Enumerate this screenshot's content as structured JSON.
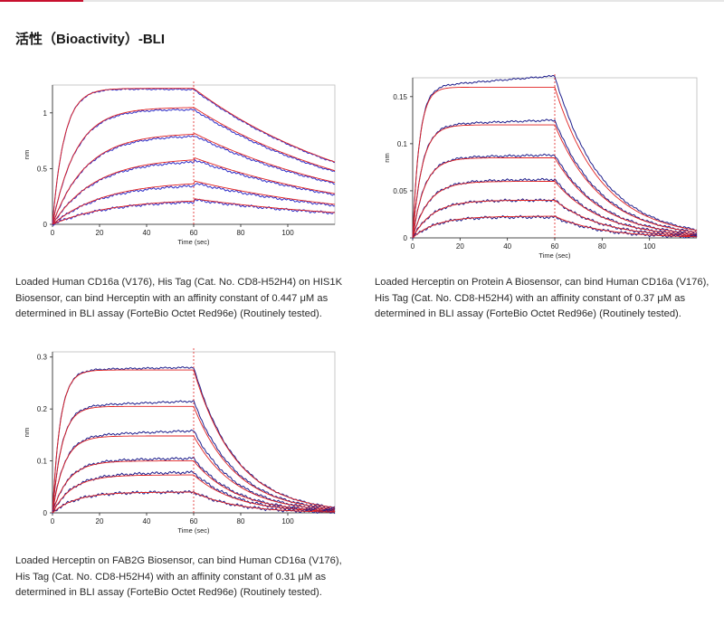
{
  "section_title": "活性（Bioactivity）-BLI",
  "chart_data": [
    {
      "type": "line",
      "xlabel": "Time (sec)",
      "ylabel": "nm",
      "xlim": [
        0,
        120
      ],
      "ylim": [
        0,
        1.25
      ],
      "x_ticks": [
        "0",
        "20",
        "40",
        "60",
        "80",
        "100"
      ],
      "y_ticks": [
        "0",
        "0.5",
        "1"
      ],
      "marker_x": 60,
      "colors": {
        "measured": "#2e2ec8",
        "fit": "#e02020",
        "marker": "#e02020"
      },
      "series": [
        {
          "plateau": 1.22,
          "ka": 0.2,
          "kd": 0.013,
          "end": 1.21
        },
        {
          "plateau": 1.05,
          "ka": 0.1,
          "kd": 0.013,
          "end": 1.03
        },
        {
          "plateau": 0.82,
          "ka": 0.07,
          "kd": 0.013,
          "end": 0.8
        },
        {
          "plateau": 0.6,
          "ka": 0.055,
          "kd": 0.013,
          "end": 0.58
        },
        {
          "plateau": 0.39,
          "ka": 0.045,
          "kd": 0.013,
          "end": 0.37
        },
        {
          "plateau": 0.23,
          "ka": 0.04,
          "kd": 0.013,
          "end": 0.22
        }
      ]
    },
    {
      "type": "line",
      "xlabel": "Time (sec)",
      "ylabel": "nm",
      "xlim": [
        0,
        120
      ],
      "ylim": [
        0,
        0.17
      ],
      "x_ticks": [
        "0",
        "20",
        "40",
        "60",
        "80",
        "100"
      ],
      "y_ticks": [
        "0",
        "0.05",
        "0.1",
        "0.15"
      ],
      "marker_x": 60,
      "colors": {
        "measured": "#1e1e8c",
        "fit": "#e02020",
        "marker": "#e02020"
      },
      "series": [
        {
          "plateau": 0.16,
          "ka": 0.35,
          "kd": 0.05,
          "end": 0.172
        },
        {
          "plateau": 0.12,
          "ka": 0.25,
          "kd": 0.05,
          "end": 0.125
        },
        {
          "plateau": 0.085,
          "ka": 0.2,
          "kd": 0.05,
          "end": 0.088
        },
        {
          "plateau": 0.06,
          "ka": 0.15,
          "kd": 0.05,
          "end": 0.062
        },
        {
          "plateau": 0.04,
          "ka": 0.12,
          "kd": 0.05,
          "end": 0.04
        },
        {
          "plateau": 0.023,
          "ka": 0.1,
          "kd": 0.05,
          "end": 0.022
        }
      ]
    },
    {
      "type": "line",
      "xlabel": "Time (sec)",
      "ylabel": "nm",
      "xlim": [
        0,
        120
      ],
      "ylim": [
        0,
        0.31
      ],
      "x_ticks": [
        "0",
        "20",
        "40",
        "60",
        "80",
        "100"
      ],
      "y_ticks": [
        "0",
        "0.1",
        "0.2",
        "0.3"
      ],
      "marker_x": 60,
      "colors": {
        "measured": "#1e1e8c",
        "fit": "#e02020",
        "marker": "#e02020"
      },
      "series": [
        {
          "plateau": 0.275,
          "ka": 0.3,
          "kd": 0.055,
          "end": 0.28
        },
        {
          "plateau": 0.205,
          "ka": 0.25,
          "kd": 0.055,
          "end": 0.215
        },
        {
          "plateau": 0.148,
          "ka": 0.2,
          "kd": 0.055,
          "end": 0.158
        },
        {
          "plateau": 0.1,
          "ka": 0.15,
          "kd": 0.055,
          "end": 0.105
        },
        {
          "plateau": 0.073,
          "ka": 0.12,
          "kd": 0.055,
          "end": 0.078
        },
        {
          "plateau": 0.04,
          "ka": 0.1,
          "kd": 0.055,
          "end": 0.04
        }
      ]
    }
  ],
  "captions": [
    "Loaded Human CD16a (V176), His Tag (Cat. No. CD8-H52H4) on HIS1K Biosensor, can bind Herceptin with an affinity constant of 0.447 μM as determined in BLI assay (ForteBio Octet Red96e) (Routinely tested).",
    "Loaded Herceptin on Protein A Biosensor, can bind Human CD16a (V176), His Tag (Cat. No. CD8-H52H4) with an affinity constant of 0.37 μM as determined in BLI assay (ForteBio Octet Red96e) (Routinely tested).",
    "Loaded Herceptin on FAB2G Biosensor, can bind Human CD16a (V176), His Tag (Cat. No. CD8-H52H4) with an affinity constant of 0.31 μM as determined in BLI assay (ForteBio Octet Red96e) (Routinely tested)."
  ]
}
